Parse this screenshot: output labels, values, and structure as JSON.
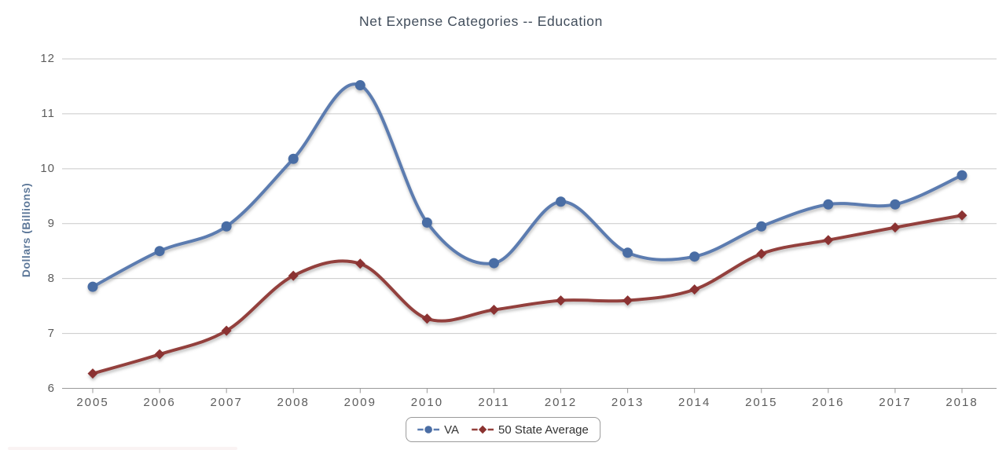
{
  "chart_data": {
    "type": "line",
    "title": "Net Expense Categories -- Education",
    "xlabel": "",
    "ylabel": "Dollars (Billions)",
    "categories": [
      "2005",
      "2006",
      "2007",
      "2008",
      "2009",
      "2010",
      "2011",
      "2012",
      "2013",
      "2014",
      "2015",
      "2016",
      "2017",
      "2018"
    ],
    "series": [
      {
        "name": "VA",
        "marker": "circle",
        "line_color": "#5b7cb0",
        "marker_color": "#4a6da4",
        "values": [
          7.85,
          8.5,
          8.95,
          10.18,
          11.52,
          9.02,
          8.28,
          9.4,
          8.47,
          8.4,
          8.95,
          9.35,
          9.35,
          9.88
        ]
      },
      {
        "name": "50 State Average",
        "marker": "diamond",
        "line_color": "#93403c",
        "marker_color": "#8b3230",
        "values": [
          6.27,
          6.62,
          7.05,
          8.05,
          8.27,
          7.27,
          7.43,
          7.6,
          7.6,
          7.8,
          8.45,
          8.7,
          8.93,
          9.15
        ]
      }
    ],
    "ylim": [
      6,
      12
    ],
    "yticks": [
      12,
      11,
      10,
      9,
      8,
      7,
      6
    ],
    "grid": true,
    "legend_position": "bottom",
    "curve": "smooth-spline"
  }
}
